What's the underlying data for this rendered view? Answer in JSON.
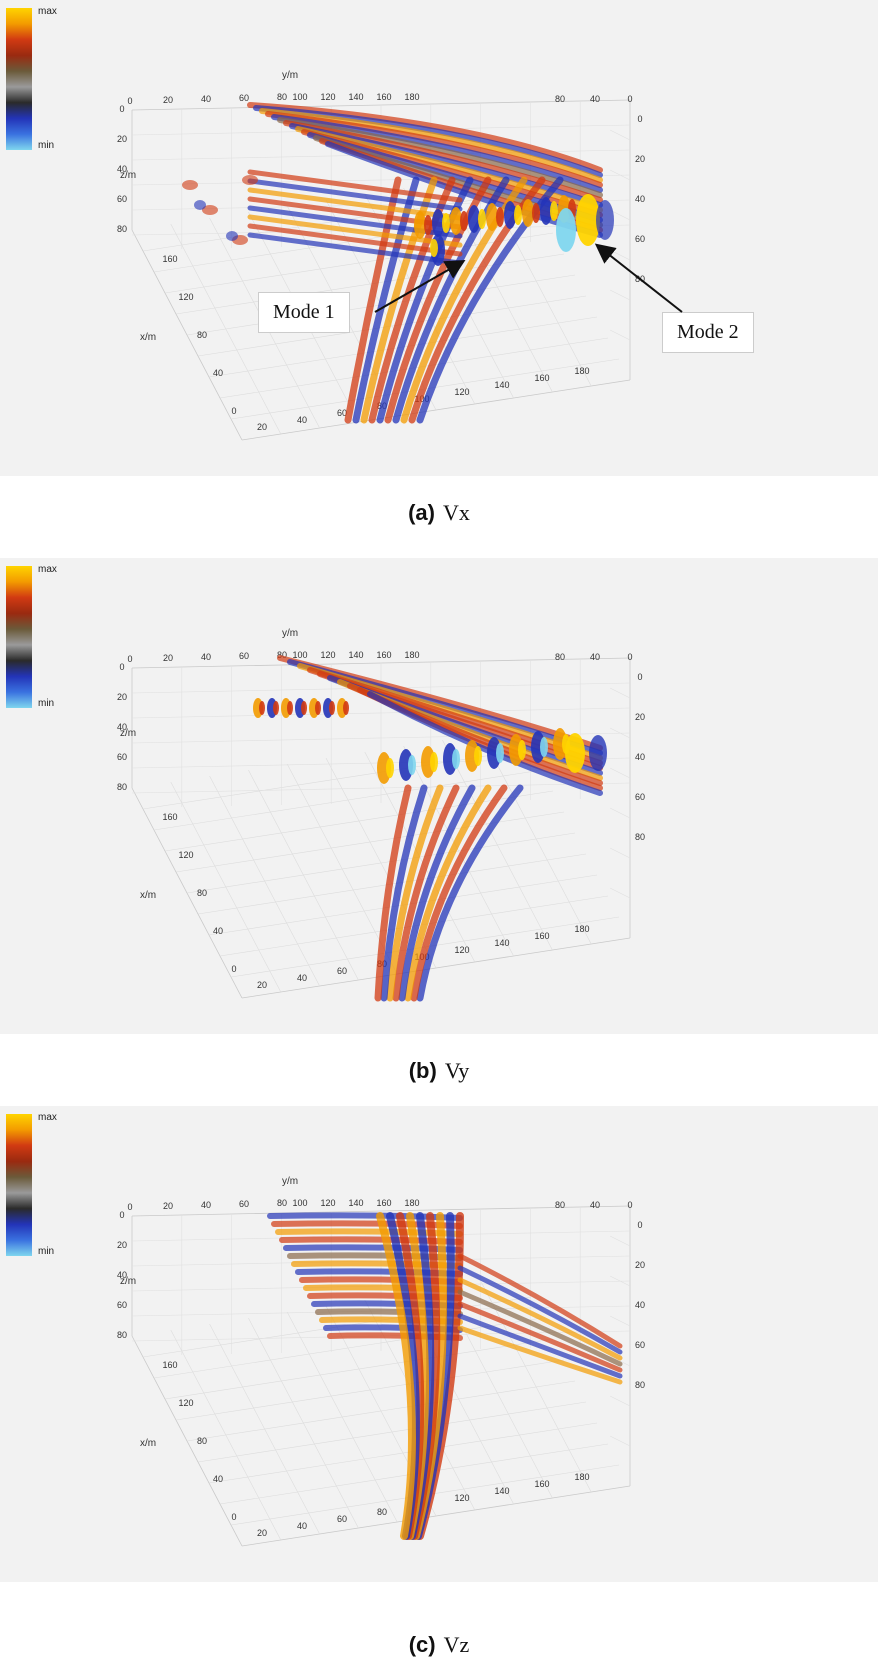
{
  "colorbar": {
    "max_label": "max",
    "min_label": "min",
    "colors": [
      "#ffd400",
      "#f39b00",
      "#d13a12",
      "#9a2a10",
      "#6b5a3a",
      "#9a9a9a",
      "#2a2a2a",
      "#2334b8",
      "#3a72e0",
      "#7fd6ee"
    ]
  },
  "axis_labels": {
    "x": "x/m",
    "y": "y/m",
    "z": "z/m"
  },
  "ticks": {
    "top_front_y": [
      "0",
      "20",
      "40",
      "60",
      "80"
    ],
    "top_y": [
      "100",
      "120",
      "140",
      "160",
      "180"
    ],
    "right_y": [
      "160",
      "180"
    ],
    "side_y": [
      "80",
      "40",
      "0"
    ],
    "z_left": [
      "0",
      "20",
      "40",
      "60",
      "80"
    ],
    "z_right": [
      "0",
      "20",
      "40",
      "60",
      "80"
    ],
    "x_left": [
      "160",
      "120",
      "80",
      "40",
      "0"
    ],
    "bottom_y": [
      "20",
      "40",
      "60",
      "80",
      "100",
      "120",
      "140",
      "160",
      "180"
    ]
  },
  "panels": [
    {
      "letter": "(a)",
      "component": "Vx",
      "annotations": [
        "Mode 1",
        "Mode 2"
      ]
    },
    {
      "letter": "(b)",
      "component": "Vy"
    },
    {
      "letter": "(c)",
      "component": "Vz"
    }
  ]
}
